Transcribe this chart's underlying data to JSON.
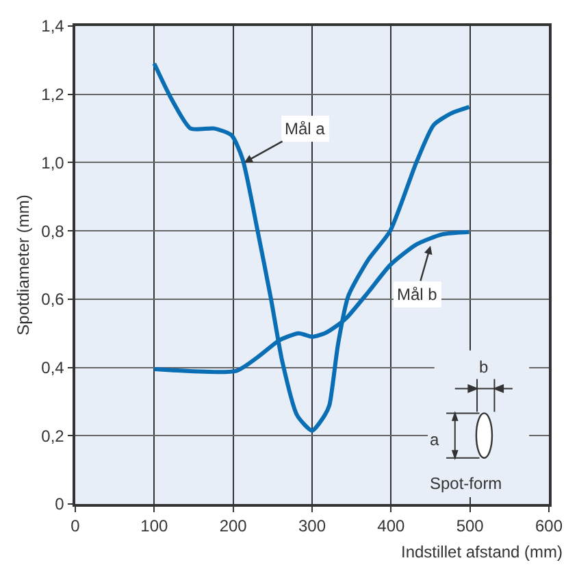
{
  "chart_data": {
    "type": "line",
    "xlabel": "Indstillet afstand (mm)",
    "ylabel": "Spotdiameter (mm)",
    "xlim": [
      0,
      600
    ],
    "xticks": [
      0,
      100,
      200,
      300,
      400,
      500,
      600
    ],
    "ylim": [
      0,
      1.4
    ],
    "yticks": [
      0,
      {
        "value": 0.2,
        "label": "0,2"
      },
      {
        "value": 0.4,
        "label": "0,4"
      },
      {
        "value": 0.6,
        "label": "0,6"
      },
      {
        "value": 0.8,
        "label": "0,8"
      },
      {
        "value": 1.0,
        "label": "1,0"
      },
      {
        "value": 1.2,
        "label": "1,2"
      },
      {
        "value": 1.4,
        "label": "1,4"
      }
    ],
    "grid": true,
    "line_style": "solid",
    "series": [
      {
        "color": "#0a6eb4",
        "x": [
          100,
          121,
          146,
          176,
          198,
          212,
          231,
          248,
          262,
          281,
          300,
          316,
          322,
          333,
          346,
          371,
          399,
          432,
          454,
          476,
          499
        ],
        "values": [
          1.29,
          1.19,
          1.1,
          1.1,
          1.08,
          1.01,
          0.8,
          0.6,
          0.42,
          0.26,
          0.215,
          0.26,
          0.29,
          0.47,
          0.61,
          0.715,
          0.8,
          1.0,
          1.11,
          1.144,
          1.163
        ]
      },
      {
        "color": "#0a6eb4",
        "x": [
          100,
          204,
          231,
          259,
          283,
          300,
          316,
          330,
          344,
          371,
          399,
          432,
          465,
          499
        ],
        "values": [
          0.395,
          0.39,
          0.43,
          0.48,
          0.5,
          0.49,
          0.5,
          0.52,
          0.546,
          0.62,
          0.7,
          0.76,
          0.79,
          0.797
        ]
      }
    ],
    "annotations": [
      {
        "text": "Mål a",
        "x": 214,
        "y": 1.0
      },
      {
        "text": "Mål b",
        "x": 450,
        "y": 0.756
      },
      "b",
      "a",
      "Spot-form"
    ]
  }
}
